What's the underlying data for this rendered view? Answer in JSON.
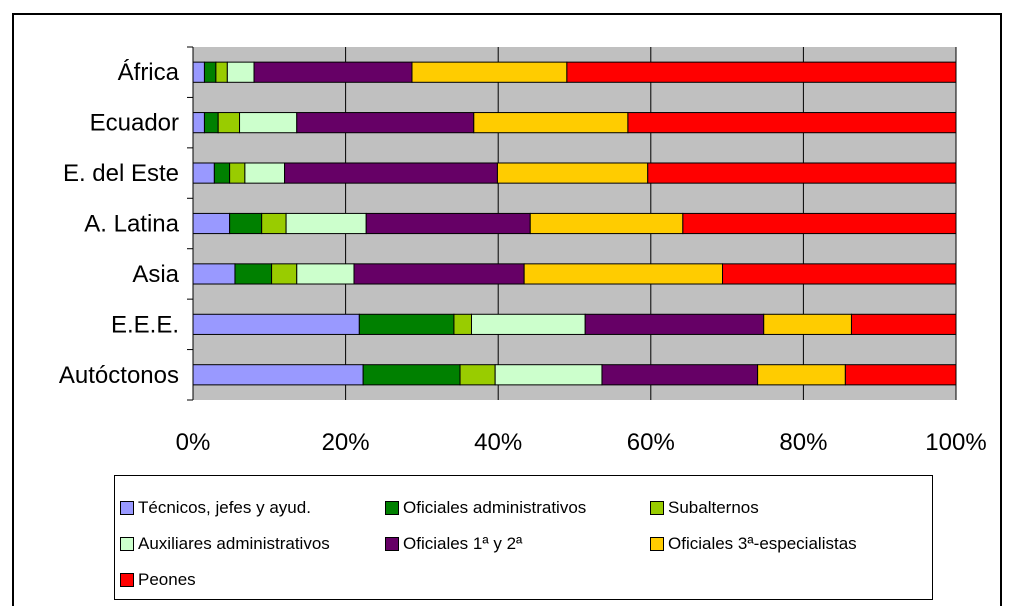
{
  "chart_data": {
    "type": "bar",
    "orientation": "horizontal",
    "stacked": "percent",
    "categories": [
      "África",
      "Ecuador",
      "E. del Este",
      "A. Latina",
      "Asia",
      "E.E.E.",
      "Autóctonos"
    ],
    "series": [
      {
        "name": "Técnicos, jefes y ayud.",
        "color": "#9999FF",
        "values": [
          1.5,
          1.5,
          2.8,
          4.8,
          5.5,
          21.8,
          22.3
        ]
      },
      {
        "name": "Oficiales administrativos",
        "color": "#008000",
        "values": [
          1.5,
          1.8,
          2.0,
          4.2,
          4.8,
          12.4,
          12.7
        ]
      },
      {
        "name": "Subalternos",
        "color": "#99CC00",
        "values": [
          1.5,
          2.8,
          2.0,
          3.2,
          3.3,
          2.3,
          4.6
        ]
      },
      {
        "name": "Auxiliares administrativos",
        "color": "#CCFFCC",
        "values": [
          3.5,
          7.5,
          5.2,
          10.5,
          7.5,
          14.9,
          14.0
        ]
      },
      {
        "name": "Oficiales 1ª y 2ª",
        "color": "#660066",
        "values": [
          20.7,
          23.2,
          27.9,
          21.5,
          22.3,
          23.4,
          20.4
        ]
      },
      {
        "name": "Oficiales 3ª-especialistas",
        "color": "#FFCC00",
        "values": [
          20.3,
          20.2,
          19.7,
          20.0,
          26.0,
          11.5,
          11.5
        ]
      },
      {
        "name": "Peones",
        "color": "#FF0000",
        "values": [
          51.0,
          43.0,
          40.4,
          35.8,
          30.6,
          13.7,
          14.5
        ]
      }
    ],
    "xlim": [
      0,
      100
    ],
    "x_ticks": [
      "0%",
      "20%",
      "40%",
      "60%",
      "80%",
      "100%"
    ],
    "grid": true,
    "legend_position": "bottom",
    "plot_background": "#C0C0C0",
    "grid_color": "#000000"
  }
}
